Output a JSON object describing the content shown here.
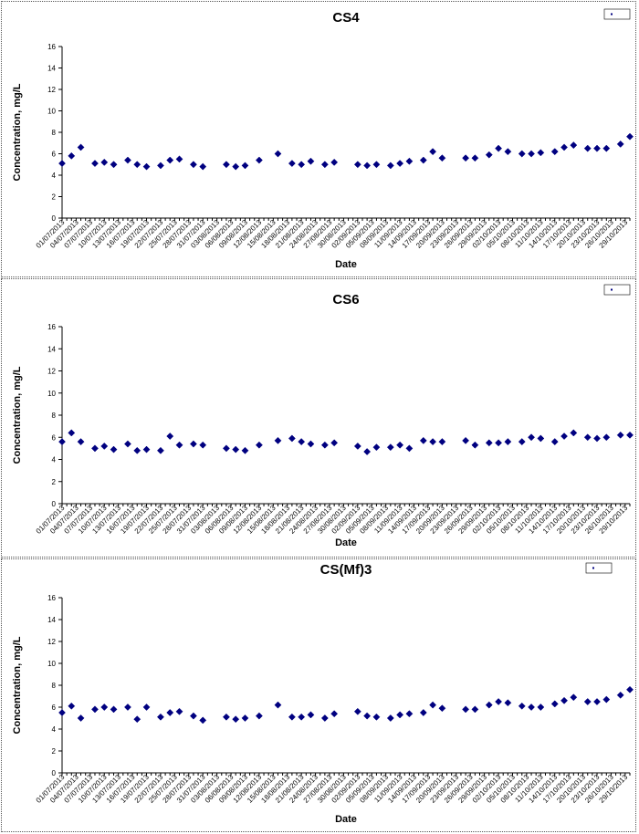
{
  "chart_data": [
    {
      "type": "scatter",
      "title": "CS4",
      "xlabel": "Date",
      "ylabel": "Concentration, mg/L",
      "ylim": [
        0,
        16
      ],
      "yticks": [
        0,
        2,
        4,
        6,
        8,
        10,
        12,
        14,
        16
      ],
      "xlim": [
        "01/07/2013",
        "30/10/2013"
      ],
      "xtick_labels": [
        "01/07/2013",
        "04/07/2013",
        "07/07/2013",
        "10/07/2013",
        "13/07/2013",
        "16/07/2013",
        "19/07/2013",
        "22/07/2013",
        "25/07/2013",
        "28/07/2013",
        "31/07/2013",
        "03/08/2013",
        "06/08/2013",
        "09/08/2013",
        "12/08/2013",
        "15/08/2013",
        "18/08/2013",
        "21/08/2013",
        "24/08/2013",
        "27/08/2013",
        "30/08/2013",
        "02/09/2013",
        "05/09/2013",
        "08/09/2013",
        "11/09/2013",
        "14/09/2013",
        "17/09/2013",
        "20/09/2013",
        "23/09/2013",
        "26/09/2013",
        "29/09/2013",
        "02/10/2013",
        "05/10/2013",
        "08/10/2013",
        "11/10/2013",
        "14/10/2013",
        "17/10/2013",
        "20/10/2013",
        "23/10/2013",
        "26/10/2013",
        "29/10/2013"
      ],
      "legend": "top-right",
      "grid": false,
      "color": "#000080",
      "points": [
        [
          "01/07/2013",
          5.1
        ],
        [
          "03/07/2013",
          5.8
        ],
        [
          "05/07/2013",
          6.6
        ],
        [
          "08/07/2013",
          5.1
        ],
        [
          "10/07/2013",
          5.2
        ],
        [
          "12/07/2013",
          5.0
        ],
        [
          "15/07/2013",
          5.4
        ],
        [
          "17/07/2013",
          5.0
        ],
        [
          "19/07/2013",
          4.8
        ],
        [
          "22/07/2013",
          4.9
        ],
        [
          "24/07/2013",
          5.4
        ],
        [
          "26/07/2013",
          5.5
        ],
        [
          "29/07/2013",
          5.0
        ],
        [
          "31/07/2013",
          4.8
        ],
        [
          "05/08/2013",
          5.0
        ],
        [
          "07/08/2013",
          4.8
        ],
        [
          "09/08/2013",
          4.9
        ],
        [
          "12/08/2013",
          5.4
        ],
        [
          "16/08/2013",
          6.0
        ],
        [
          "19/08/2013",
          5.1
        ],
        [
          "21/08/2013",
          5.0
        ],
        [
          "23/08/2013",
          5.3
        ],
        [
          "26/08/2013",
          5.0
        ],
        [
          "28/08/2013",
          5.2
        ],
        [
          "02/09/2013",
          5.0
        ],
        [
          "04/09/2013",
          4.9
        ],
        [
          "06/09/2013",
          5.0
        ],
        [
          "09/09/2013",
          4.9
        ],
        [
          "11/09/2013",
          5.1
        ],
        [
          "13/09/2013",
          5.3
        ],
        [
          "16/09/2013",
          5.4
        ],
        [
          "18/09/2013",
          6.2
        ],
        [
          "20/09/2013",
          5.6
        ],
        [
          "25/09/2013",
          5.6
        ],
        [
          "27/09/2013",
          5.6
        ],
        [
          "30/09/2013",
          5.9
        ],
        [
          "02/10/2013",
          6.5
        ],
        [
          "04/10/2013",
          6.2
        ],
        [
          "07/10/2013",
          6.0
        ],
        [
          "09/10/2013",
          6.0
        ],
        [
          "11/10/2013",
          6.1
        ],
        [
          "14/10/2013",
          6.2
        ],
        [
          "16/10/2013",
          6.6
        ],
        [
          "18/10/2013",
          6.8
        ],
        [
          "21/10/2013",
          6.5
        ],
        [
          "23/10/2013",
          6.5
        ],
        [
          "25/10/2013",
          6.5
        ],
        [
          "28/10/2013",
          6.9
        ],
        [
          "30/10/2013",
          7.6
        ]
      ]
    },
    {
      "type": "scatter",
      "title": "CS6",
      "xlabel": "Date",
      "ylabel": "Concentration, mg/L",
      "ylim": [
        0,
        16
      ],
      "yticks": [
        0,
        2,
        4,
        6,
        8,
        10,
        12,
        14,
        16
      ],
      "xlim": [
        "01/07/2013",
        "30/10/2013"
      ],
      "xtick_labels": [
        "01/07/2013",
        "04/07/2013",
        "07/07/2013",
        "10/07/2013",
        "13/07/2013",
        "16/07/2013",
        "19/07/2013",
        "22/07/2013",
        "25/07/2013",
        "28/07/2013",
        "31/07/2013",
        "03/08/2013",
        "06/08/2013",
        "09/08/2013",
        "12/08/2013",
        "15/08/2013",
        "18/08/2013",
        "21/08/2013",
        "24/08/2013",
        "27/08/2013",
        "30/08/2013",
        "02/09/2013",
        "05/09/2013",
        "08/09/2013",
        "11/09/2013",
        "14/09/2013",
        "17/09/2013",
        "20/09/2013",
        "23/09/2013",
        "26/09/2013",
        "29/09/2013",
        "02/10/2013",
        "05/10/2013",
        "08/10/2013",
        "11/10/2013",
        "14/10/2013",
        "17/10/2013",
        "20/10/2013",
        "23/10/2013",
        "26/10/2013",
        "29/10/2013"
      ],
      "legend": "top-right",
      "grid": false,
      "color": "#000080",
      "points": [
        [
          "01/07/2013",
          5.6
        ],
        [
          "03/07/2013",
          6.4
        ],
        [
          "05/07/2013",
          5.6
        ],
        [
          "08/07/2013",
          5.0
        ],
        [
          "10/07/2013",
          5.2
        ],
        [
          "12/07/2013",
          4.9
        ],
        [
          "15/07/2013",
          5.4
        ],
        [
          "17/07/2013",
          4.8
        ],
        [
          "19/07/2013",
          4.9
        ],
        [
          "22/07/2013",
          4.8
        ],
        [
          "24/07/2013",
          6.1
        ],
        [
          "26/07/2013",
          5.3
        ],
        [
          "29/07/2013",
          5.4
        ],
        [
          "31/07/2013",
          5.3
        ],
        [
          "05/08/2013",
          5.0
        ],
        [
          "07/08/2013",
          4.9
        ],
        [
          "09/08/2013",
          4.8
        ],
        [
          "12/08/2013",
          5.3
        ],
        [
          "16/08/2013",
          5.7
        ],
        [
          "19/08/2013",
          5.9
        ],
        [
          "21/08/2013",
          5.6
        ],
        [
          "23/08/2013",
          5.4
        ],
        [
          "26/08/2013",
          5.3
        ],
        [
          "28/08/2013",
          5.5
        ],
        [
          "02/09/2013",
          5.2
        ],
        [
          "04/09/2013",
          4.7
        ],
        [
          "06/09/2013",
          5.1
        ],
        [
          "09/09/2013",
          5.1
        ],
        [
          "11/09/2013",
          5.3
        ],
        [
          "13/09/2013",
          5.0
        ],
        [
          "16/09/2013",
          5.7
        ],
        [
          "18/09/2013",
          5.6
        ],
        [
          "20/09/2013",
          5.6
        ],
        [
          "25/09/2013",
          5.7
        ],
        [
          "27/09/2013",
          5.3
        ],
        [
          "30/09/2013",
          5.5
        ],
        [
          "02/10/2013",
          5.5
        ],
        [
          "04/10/2013",
          5.6
        ],
        [
          "07/10/2013",
          5.6
        ],
        [
          "09/10/2013",
          6.0
        ],
        [
          "11/10/2013",
          5.9
        ],
        [
          "14/10/2013",
          5.6
        ],
        [
          "16/10/2013",
          6.1
        ],
        [
          "18/10/2013",
          6.4
        ],
        [
          "21/10/2013",
          6.0
        ],
        [
          "23/10/2013",
          5.9
        ],
        [
          "25/10/2013",
          6.0
        ],
        [
          "28/10/2013",
          6.2
        ],
        [
          "30/10/2013",
          6.2
        ]
      ]
    },
    {
      "type": "scatter",
      "title": "CS(Mf)3",
      "xlabel": "Date",
      "ylabel": "Concentration, mg/L",
      "ylim": [
        0,
        16
      ],
      "yticks": [
        0,
        2,
        4,
        6,
        8,
        10,
        12,
        14,
        16
      ],
      "xlim": [
        "01/07/2013",
        "30/10/2013"
      ],
      "xtick_labels": [
        "01/07/2013",
        "04/07/2013",
        "07/07/2013",
        "10/07/2013",
        "13/07/2013",
        "16/07/2013",
        "19/07/2013",
        "22/07/2013",
        "25/07/2013",
        "28/07/2013",
        "31/07/2013",
        "03/08/2013",
        "06/08/2013",
        "09/08/2013",
        "12/08/2013",
        "15/08/2013",
        "18/08/2013",
        "21/08/2013",
        "24/08/2013",
        "27/08/2013",
        "30/08/2013",
        "02/09/2013",
        "05/09/2013",
        "08/09/2013",
        "11/09/2013",
        "14/09/2013",
        "17/09/2013",
        "20/09/2013",
        "23/09/2013",
        "26/09/2013",
        "29/09/2013",
        "02/10/2013",
        "05/10/2013",
        "08/10/2013",
        "11/10/2013",
        "14/10/2013",
        "17/10/2013",
        "20/10/2013",
        "23/10/2013",
        "26/10/2013",
        "29/10/2013"
      ],
      "legend": "top-right",
      "grid": false,
      "color": "#000080",
      "points": [
        [
          "01/07/2013",
          5.5
        ],
        [
          "03/07/2013",
          6.1
        ],
        [
          "05/07/2013",
          5.0
        ],
        [
          "08/07/2013",
          5.8
        ],
        [
          "10/07/2013",
          6.0
        ],
        [
          "12/07/2013",
          5.8
        ],
        [
          "15/07/2013",
          6.0
        ],
        [
          "17/07/2013",
          4.9
        ],
        [
          "19/07/2013",
          6.0
        ],
        [
          "22/07/2013",
          5.1
        ],
        [
          "24/07/2013",
          5.5
        ],
        [
          "26/07/2013",
          5.6
        ],
        [
          "29/07/2013",
          5.2
        ],
        [
          "31/07/2013",
          4.8
        ],
        [
          "05/08/2013",
          5.1
        ],
        [
          "07/08/2013",
          4.9
        ],
        [
          "09/08/2013",
          5.0
        ],
        [
          "12/08/2013",
          5.2
        ],
        [
          "16/08/2013",
          6.2
        ],
        [
          "19/08/2013",
          5.1
        ],
        [
          "21/08/2013",
          5.1
        ],
        [
          "23/08/2013",
          5.3
        ],
        [
          "26/08/2013",
          5.0
        ],
        [
          "28/08/2013",
          5.4
        ],
        [
          "02/09/2013",
          5.6
        ],
        [
          "04/09/2013",
          5.2
        ],
        [
          "06/09/2013",
          5.1
        ],
        [
          "09/09/2013",
          5.0
        ],
        [
          "11/09/2013",
          5.3
        ],
        [
          "13/09/2013",
          5.4
        ],
        [
          "16/09/2013",
          5.5
        ],
        [
          "18/09/2013",
          6.2
        ],
        [
          "20/09/2013",
          5.9
        ],
        [
          "25/09/2013",
          5.8
        ],
        [
          "27/09/2013",
          5.8
        ],
        [
          "30/09/2013",
          6.2
        ],
        [
          "02/10/2013",
          6.5
        ],
        [
          "04/10/2013",
          6.4
        ],
        [
          "07/10/2013",
          6.1
        ],
        [
          "09/10/2013",
          6.0
        ],
        [
          "11/10/2013",
          6.0
        ],
        [
          "14/10/2013",
          6.3
        ],
        [
          "16/10/2013",
          6.6
        ],
        [
          "18/10/2013",
          6.9
        ],
        [
          "21/10/2013",
          6.5
        ],
        [
          "23/10/2013",
          6.5
        ],
        [
          "25/10/2013",
          6.7
        ],
        [
          "28/10/2013",
          7.1
        ],
        [
          "30/10/2013",
          7.6
        ]
      ]
    }
  ]
}
